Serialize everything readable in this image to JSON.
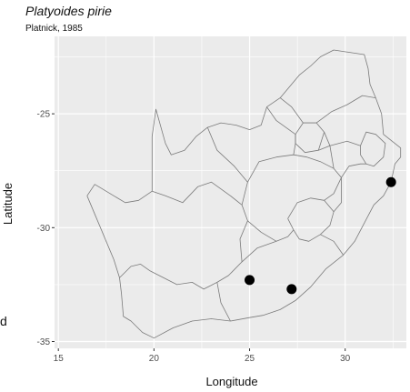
{
  "title": "Platyoides pirie",
  "subtitle": "Platnick, 1985",
  "stray_text": "d",
  "map": {
    "xlabel": "Longitude",
    "ylabel": "Latitude",
    "xlim": [
      14.8,
      33.2
    ],
    "ylim": [
      -35.3,
      -21.6
    ],
    "x_ticks": [
      15,
      20,
      25,
      30
    ],
    "y_ticks": [
      -25,
      -30,
      -35
    ],
    "grid": true,
    "panel_color": "#ebebeb",
    "grid_color": "#ffffff",
    "border_color": "#7a7a7a",
    "point_color": "#000000",
    "occurrences": [
      {
        "lon": 32.4,
        "lat": -28.0
      },
      {
        "lon": 25.0,
        "lat": -32.3
      },
      {
        "lon": 27.2,
        "lat": -32.7
      }
    ]
  }
}
